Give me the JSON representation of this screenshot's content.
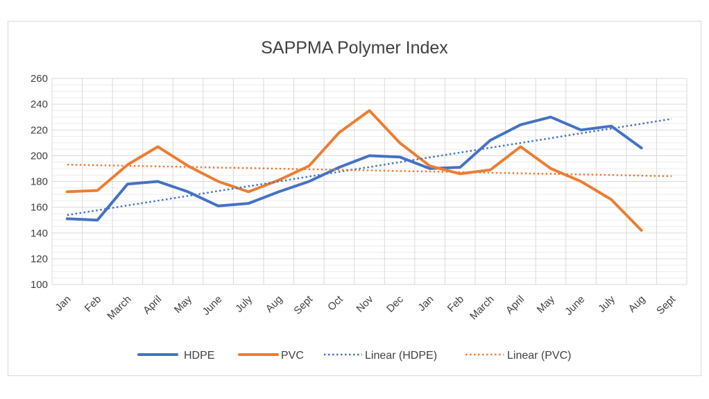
{
  "chart_data": {
    "type": "line",
    "title": "SAPPMA Polymer Index",
    "xlabel": "",
    "ylabel": "",
    "ylim": [
      100,
      260
    ],
    "ytick_step": 20,
    "categories": [
      "Jan",
      "Feb",
      "March",
      "April",
      "May",
      "June",
      "July",
      "Aug",
      "Sept",
      "Oct",
      "Nov",
      "Dec",
      "Jan",
      "Feb",
      "March",
      "April",
      "May",
      "June",
      "July",
      "Aug",
      "Sept"
    ],
    "series": [
      {
        "name": "HDPE",
        "color": "#4472c4",
        "style": "solid",
        "values": [
          151,
          150,
          178,
          180,
          172,
          161,
          163,
          172,
          180,
          191,
          200,
          199,
          190,
          191,
          212,
          224,
          230,
          220,
          223,
          206,
          null
        ]
      },
      {
        "name": "PVC",
        "color": "#ed7d31",
        "style": "solid",
        "values": [
          172,
          173,
          193,
          207,
          192,
          180,
          172,
          181,
          192,
          218,
          235,
          210,
          192,
          186,
          189,
          207,
          190,
          180,
          166,
          142,
          null
        ]
      },
      {
        "name": "Linear (HDPE)",
        "color": "#4472c4",
        "style": "dotted",
        "trend_of": "HDPE",
        "values": [
          153.9,
          157.6,
          161.4,
          165.1,
          168.8,
          172.6,
          176.3,
          180.0,
          183.8,
          187.5,
          191.2,
          195.0,
          198.7,
          202.4,
          206.2,
          209.9,
          213.6,
          217.4,
          221.1,
          224.8,
          228.6
        ]
      },
      {
        "name": "Linear (PVC)",
        "color": "#ed7d31",
        "style": "dotted",
        "trend_of": "PVC",
        "values": [
          193.1,
          192.6,
          192.2,
          191.7,
          191.3,
          190.8,
          190.4,
          189.9,
          189.5,
          189.0,
          188.6,
          188.1,
          187.7,
          187.2,
          186.8,
          186.3,
          185.9,
          185.4,
          185.0,
          184.5,
          184.1
        ]
      }
    ],
    "legend": [
      "HDPE",
      "PVC",
      "Linear (HDPE)",
      "Linear (PVC)"
    ],
    "legend_position": "bottom",
    "grid": true
  }
}
